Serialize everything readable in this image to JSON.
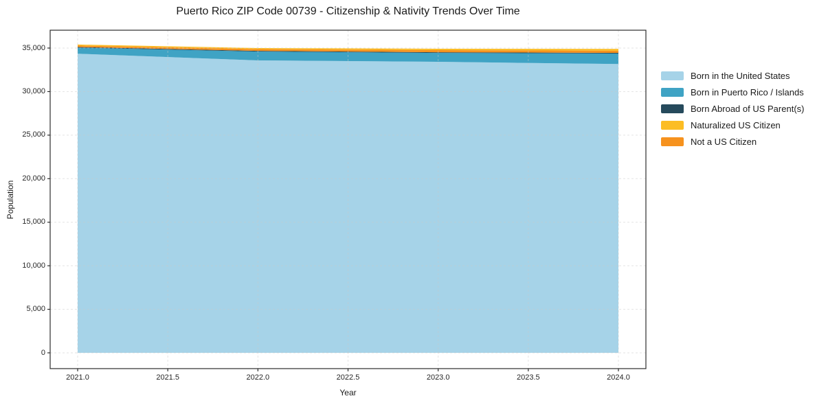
{
  "title": "Puerto Rico ZIP Code 00739 - Citizenship & Nativity Trends Over Time",
  "axes": {
    "xlabel": "Year",
    "ylabel": "Population",
    "x_ticks": [
      {
        "label": "2021.0",
        "value": 2021.0
      },
      {
        "label": "2021.5",
        "value": 2021.5
      },
      {
        "label": "2022.0",
        "value": 2022.0
      },
      {
        "label": "2022.5",
        "value": 2022.5
      },
      {
        "label": "2023.0",
        "value": 2023.0
      },
      {
        "label": "2023.5",
        "value": 2023.5
      },
      {
        "label": "2024.0",
        "value": 2024.0
      }
    ],
    "y_ticks": [
      {
        "label": "0",
        "value": 0
      },
      {
        "label": "5,000",
        "value": 5000
      },
      {
        "label": "10,000",
        "value": 10000
      },
      {
        "label": "15,000",
        "value": 15000
      },
      {
        "label": "20,000",
        "value": 20000
      },
      {
        "label": "25,000",
        "value": 25000
      },
      {
        "label": "30,000",
        "value": 30000
      },
      {
        "label": "35,000",
        "value": 35000
      }
    ]
  },
  "chart_data": {
    "type": "area",
    "stacked": true,
    "title": "Puerto Rico ZIP Code 00739 - Citizenship & Nativity Trends Over Time",
    "xlabel": "Year",
    "ylabel": "Population",
    "x": [
      2021,
      2022,
      2023,
      2024
    ],
    "xlim": [
      2021,
      2024
    ],
    "ylim": [
      0,
      35000
    ],
    "grid": true,
    "legend_position": "right-outside",
    "series": [
      {
        "name": "Born in the United States",
        "color": "#a6d3e8",
        "values": [
          34350,
          33580,
          33420,
          33160
        ]
      },
      {
        "name": "Born in Puerto Rico / Islands",
        "color": "#3fa3c4",
        "values": [
          690,
          1020,
          1020,
          1210
        ]
      },
      {
        "name": "Born Abroad of US Parent(s)",
        "color": "#264a5c",
        "values": [
          80,
          80,
          80,
          80
        ]
      },
      {
        "name": "Naturalized US Citizen",
        "color": "#fcbd24",
        "values": [
          120,
          120,
          160,
          210
        ]
      },
      {
        "name": "Not a US Citizen",
        "color": "#f6921e",
        "values": [
          160,
          200,
          240,
          240
        ]
      }
    ],
    "stack_order": [
      0,
      1,
      2,
      4,
      3
    ]
  },
  "style": {
    "spine_color": "#2b2b2b",
    "grid_color": "#c9c9c9",
    "text_color": "#1a1a1a"
  }
}
